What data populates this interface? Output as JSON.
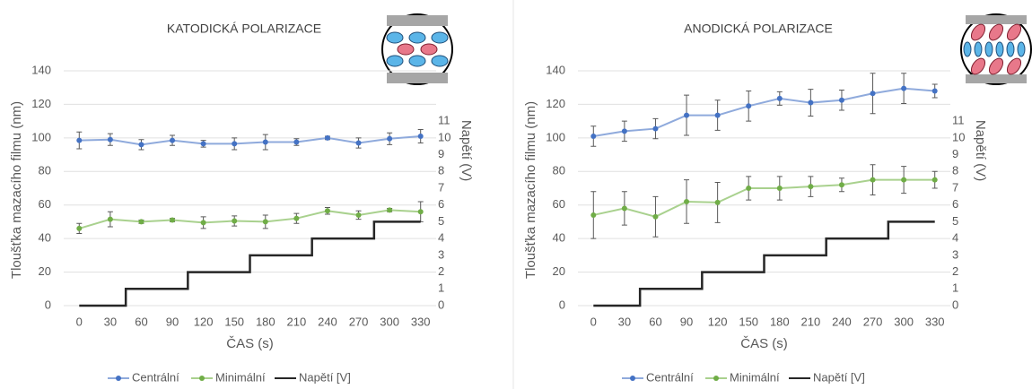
{
  "chart_data": [
    {
      "type": "line",
      "title": "KATODICKÁ POLARIZACE",
      "x_label": "ČAS (s)",
      "y_label": "Tloušťka mazacího filmu (nm)",
      "y2_label": "Napětí (V)",
      "x": [
        0,
        30,
        60,
        90,
        120,
        150,
        180,
        210,
        240,
        270,
        300,
        330
      ],
      "xlim": [
        -15,
        345
      ],
      "ylim": [
        0,
        140
      ],
      "yticks": [
        0,
        20,
        40,
        60,
        80,
        100,
        120,
        140
      ],
      "y2lim": [
        0,
        14
      ],
      "y2ticks": [
        0,
        1,
        2,
        3,
        4,
        5,
        6,
        7,
        8,
        9,
        10,
        11
      ],
      "grid": true,
      "series": [
        {
          "name": "Centrální",
          "color": "#4472c4",
          "values": [
            98.5,
            99,
            96,
            98.5,
            96.5,
            96.5,
            97.5,
            97.5,
            100,
            97,
            99.5,
            101
          ],
          "errors": [
            5,
            3.5,
            3,
            3,
            2,
            3.5,
            4.5,
            2,
            1,
            3,
            3.5,
            4
          ]
        },
        {
          "name": "Minimální",
          "color": "#70ad47",
          "values": [
            46,
            51.5,
            50,
            51,
            49.5,
            50.5,
            50,
            52,
            56.5,
            54,
            57,
            56
          ],
          "errors": [
            3,
            4.5,
            1,
            1,
            3.5,
            3,
            4,
            3,
            2,
            2.5,
            1,
            6
          ]
        },
        {
          "name": "Napětí [V]",
          "color": "#262626",
          "axis": "y2",
          "x": [
            0,
            45,
            45,
            105,
            105,
            165,
            165,
            225,
            225,
            285,
            285,
            330
          ],
          "values": [
            0,
            0,
            1,
            1,
            2,
            2,
            3,
            3,
            4,
            4,
            5,
            5
          ]
        }
      ]
    },
    {
      "type": "line",
      "title": "ANODICKÁ POLARIZACE",
      "x_label": "ČAS (s)",
      "y_label": "Tloušťka mazacího filmu (nm)",
      "y2_label": "Napětí (V)",
      "x": [
        0,
        30,
        60,
        90,
        120,
        150,
        180,
        210,
        240,
        270,
        300,
        330
      ],
      "xlim": [
        -15,
        345
      ],
      "ylim": [
        0,
        140
      ],
      "yticks": [
        0,
        20,
        40,
        60,
        80,
        100,
        120,
        140
      ],
      "y2lim": [
        0,
        14
      ],
      "y2ticks": [
        0,
        1,
        2,
        3,
        4,
        5,
        6,
        7,
        8,
        9,
        10,
        11
      ],
      "grid": true,
      "series": [
        {
          "name": "Centrální",
          "color": "#4472c4",
          "values": [
            101,
            104,
            105.5,
            113.5,
            113.5,
            119,
            123.5,
            121,
            122.5,
            126.5,
            129.5,
            128
          ],
          "errors": [
            6,
            6,
            6,
            12,
            9,
            9,
            4,
            8,
            6,
            12,
            9,
            4
          ]
        },
        {
          "name": "Minimální",
          "color": "#70ad47",
          "values": [
            54,
            58,
            53,
            62,
            61.5,
            70,
            70,
            71,
            72,
            75,
            75,
            75
          ],
          "errors": [
            14,
            10,
            12,
            13,
            12,
            7,
            7,
            6,
            4,
            9,
            8,
            5
          ]
        },
        {
          "name": "Napětí [V]",
          "color": "#262626",
          "axis": "y2",
          "x": [
            0,
            45,
            45,
            105,
            105,
            165,
            165,
            225,
            225,
            285,
            285,
            330
          ],
          "values": [
            0,
            0,
            1,
            1,
            2,
            2,
            3,
            3,
            4,
            4,
            5,
            5
          ]
        }
      ]
    }
  ]
}
